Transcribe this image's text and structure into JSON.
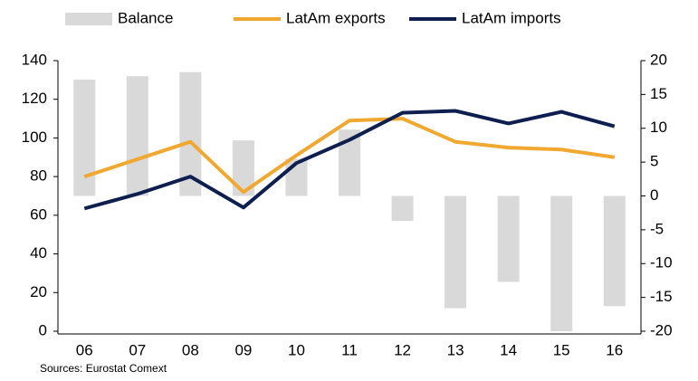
{
  "chart_data": {
    "type": "bar_line",
    "categories": [
      "06",
      "07",
      "08",
      "09",
      "10",
      "11",
      "12",
      "13",
      "14",
      "15",
      "16"
    ],
    "series": [
      {
        "name": "Balance",
        "color": "#d9d9d9",
        "type": "bar",
        "axis": "y2",
        "values": [
          17.2,
          17.7,
          18.3,
          8.2,
          5.5,
          9.8,
          -3.7,
          -16.6,
          -12.7,
          -20,
          -16.3
        ]
      },
      {
        "name": "LatAm exports",
        "color": "#f0a830",
        "type": "line",
        "values": [
          80,
          89,
          98,
          72,
          91,
          109,
          110,
          98,
          95,
          94,
          90
        ]
      },
      {
        "name": "LatAm imports",
        "color": "#0e1f4f",
        "type": "line",
        "values": [
          63.5,
          71,
          80,
          64,
          87,
          99,
          113,
          114,
          107.5,
          113.5,
          106
        ]
      }
    ],
    "ylim": [
      0,
      140
    ],
    "yticks": [
      0,
      20,
      40,
      60,
      80,
      100,
      120,
      140
    ],
    "y2lim": [
      -20,
      20
    ],
    "y2ticks": [
      -20,
      -15,
      -10,
      -5,
      0,
      5,
      10,
      15,
      20
    ],
    "source": "Sources: Eurostat Comext",
    "legend": "top"
  }
}
